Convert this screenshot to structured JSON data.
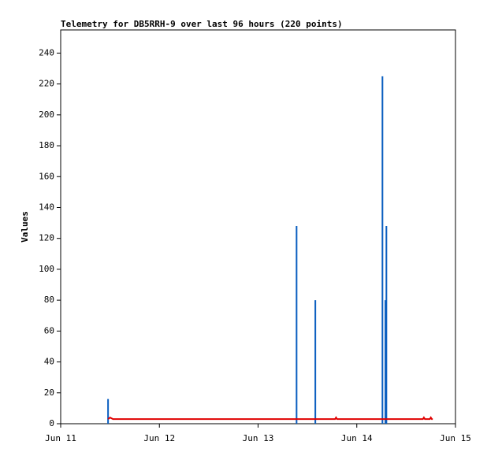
{
  "chart_data": {
    "type": "line",
    "title": "Telemetry for DB5RRH-9 over last 96 hours (220 points)",
    "y_label": "Values",
    "xlim": [
      0,
      4
    ],
    "xticks": [
      {
        "value": 0,
        "label": "Jun 11"
      },
      {
        "value": 1,
        "label": "Jun 12"
      },
      {
        "value": 2,
        "label": "Jun 13"
      },
      {
        "value": 3,
        "label": "Jun 14"
      },
      {
        "value": 4,
        "label": "Jun 15"
      }
    ],
    "ylim": [
      0,
      255
    ],
    "yticks": [
      0,
      20,
      40,
      60,
      80,
      100,
      120,
      140,
      160,
      180,
      200,
      220,
      240
    ],
    "series": [
      {
        "color": "#0b5fc0",
        "style": "impulse",
        "x": [
          0.48,
          2.39,
          2.58,
          3.26,
          3.29,
          3.3
        ],
        "values": [
          16,
          128,
          80,
          225,
          80,
          128
        ]
      },
      {
        "color": "#e00000",
        "style": "line",
        "x": [
          0.48,
          0.5,
          0.53,
          2.78,
          2.79,
          2.8,
          3.67,
          3.68,
          3.69,
          3.74,
          3.75,
          3.76,
          3.77
        ],
        "values": [
          3,
          4,
          3,
          3,
          4,
          3,
          3,
          4,
          3,
          3,
          4,
          3,
          3
        ]
      }
    ]
  }
}
